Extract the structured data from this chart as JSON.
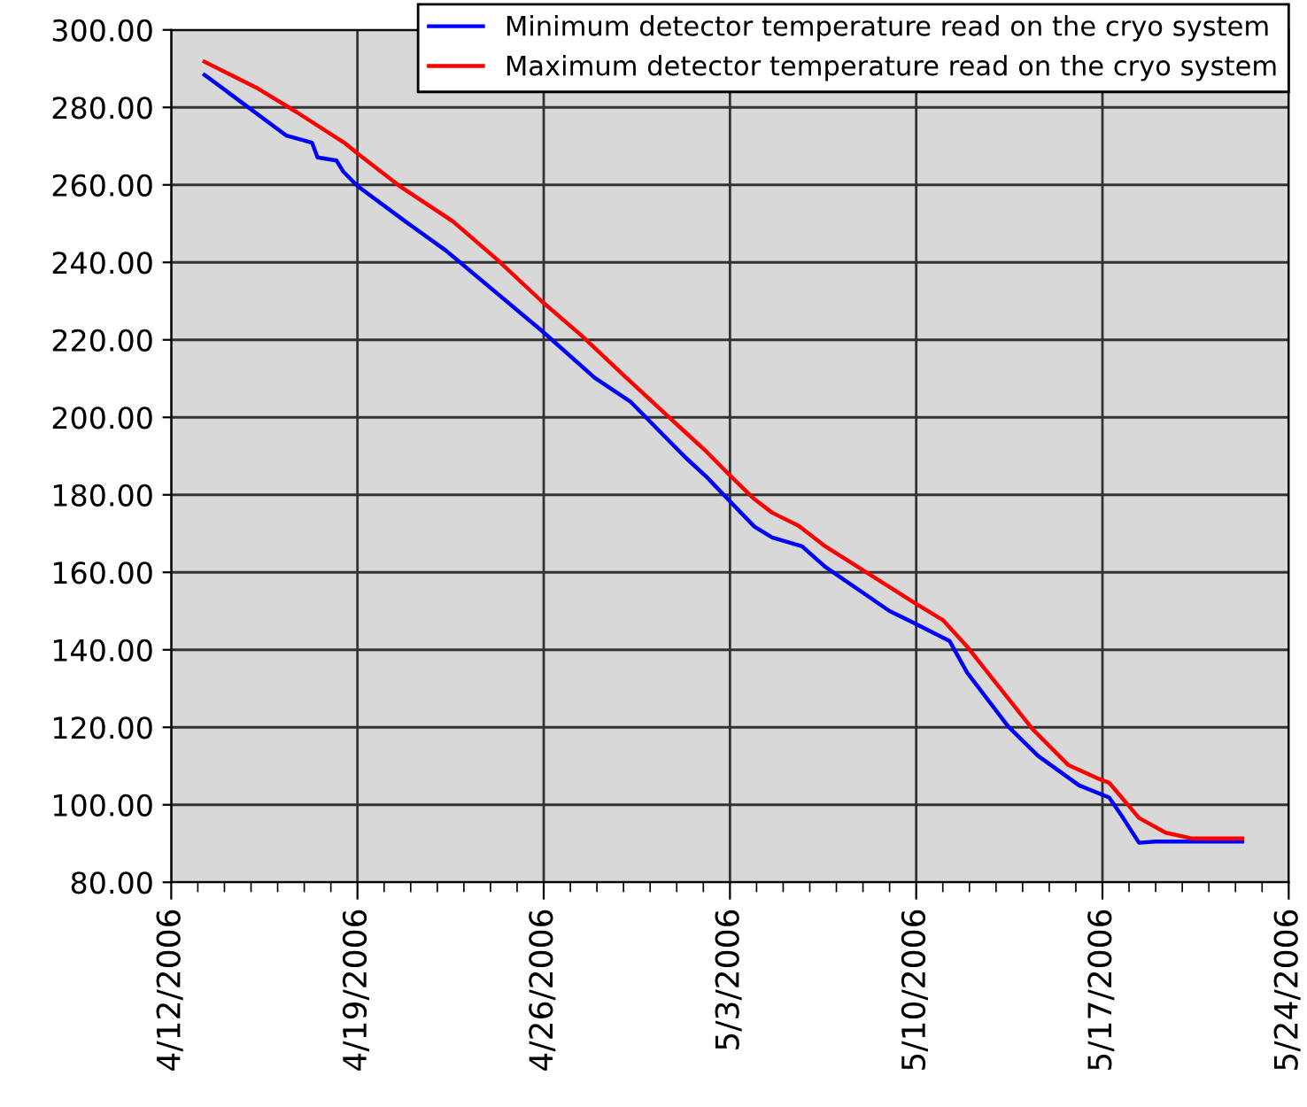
{
  "chart_data": {
    "type": "line",
    "series": [
      {
        "name": "Minimum detector temperature read on the cryo system",
        "color": "#0000ff",
        "x": [
          "2006-04-13T06:00",
          "2006-04-16T08:00",
          "2006-04-17T07:00",
          "2006-04-17T12:00",
          "2006-04-18T05:00",
          "2006-04-18T11:00",
          "2006-04-19T00:00",
          "2006-04-20T19:00",
          "2006-04-22T08:00",
          "2006-04-25T22:00",
          "2006-04-27T22:00",
          "2006-04-29T06:00",
          "2006-05-01T08:00",
          "2006-05-02T03:00",
          "2006-05-02T22:00",
          "2006-05-03T22:00",
          "2006-05-04T14:00",
          "2006-05-05T17:00",
          "2006-05-06T14:00",
          "2006-05-09T00:00",
          "2006-05-09T22:00",
          "2006-05-11T06:00",
          "2006-05-11T22:00",
          "2006-05-13T11:00",
          "2006-05-14T14:00",
          "2006-05-16T03:00",
          "2006-05-17T06:00",
          "2006-05-17T17:00",
          "2006-05-18T09:00",
          "2006-05-19T00:00",
          "2006-05-22T06:00"
        ],
        "values": [
          288.4,
          272.7,
          270.9,
          267.1,
          266.3,
          263.5,
          259.7,
          250.6,
          243.0,
          222.4,
          210.2,
          204.1,
          189.6,
          184.6,
          178.9,
          171.8,
          169.0,
          166.7,
          161.4,
          150.0,
          146.9,
          142.3,
          134.1,
          120.2,
          112.6,
          105.0,
          101.9,
          97.3,
          90.2,
          90.5,
          90.5
        ]
      },
      {
        "name": "Maximum detector temperature read on the cryo system",
        "color": "#ff0000",
        "x": [
          "2006-04-13T06:00",
          "2006-04-15T06:00",
          "2006-04-16T17:00",
          "2006-04-18T12:00",
          "2006-04-19T00:00",
          "2006-04-20T14:00",
          "2006-04-22T14:00",
          "2006-04-24T06:00",
          "2006-04-25T22:00",
          "2006-04-27T11:00",
          "2006-04-29T00:00",
          "2006-04-30T19:00",
          "2006-05-02T03:00",
          "2006-05-03T00:00",
          "2006-05-03T22:00",
          "2006-05-04T14:00",
          "2006-05-05T14:00",
          "2006-05-06T14:00",
          "2006-05-09T22:00",
          "2006-05-11T00:00",
          "2006-05-11T22:00",
          "2006-05-14T09:00",
          "2006-05-15T17:00",
          "2006-05-16T19:00",
          "2006-05-17T06:00",
          "2006-05-18T09:00",
          "2006-05-19T09:00",
          "2006-05-20T09:00",
          "2006-05-22T06:00"
        ],
        "values": [
          291.8,
          284.9,
          278.8,
          270.9,
          268.1,
          259.7,
          250.6,
          240.7,
          230.0,
          220.9,
          210.9,
          199.5,
          191.1,
          185.0,
          178.9,
          175.4,
          172.0,
          166.7,
          152.2,
          147.7,
          140.8,
          119.5,
          110.3,
          106.9,
          105.7,
          96.6,
          92.8,
          91.3,
          91.3
        ]
      }
    ],
    "xlim": [
      "2006-04-12",
      "2006-05-24"
    ],
    "xticks": [
      {
        "value": "2006-04-12",
        "label": "4/12/2006"
      },
      {
        "value": "2006-04-19",
        "label": "4/19/2006"
      },
      {
        "value": "2006-04-26",
        "label": "4/26/2006"
      },
      {
        "value": "2006-05-03",
        "label": "5/3/2006"
      },
      {
        "value": "2006-05-10",
        "label": "5/10/2006"
      },
      {
        "value": "2006-05-17",
        "label": "5/17/2006"
      },
      {
        "value": "2006-05-24",
        "label": "5/24/2006"
      }
    ],
    "ylim": [
      80,
      300
    ],
    "yticks": [
      {
        "value": 80,
        "label": "80.00"
      },
      {
        "value": 100,
        "label": "100.00"
      },
      {
        "value": 120,
        "label": "120.00"
      },
      {
        "value": 140,
        "label": "140.00"
      },
      {
        "value": 160,
        "label": "160.00"
      },
      {
        "value": 180,
        "label": "180.00"
      },
      {
        "value": 200,
        "label": "200.00"
      },
      {
        "value": 220,
        "label": "220.00"
      },
      {
        "value": 240,
        "label": "240.00"
      },
      {
        "value": 260,
        "label": "260.00"
      },
      {
        "value": 280,
        "label": "280.00"
      },
      {
        "value": 300,
        "label": "300.00"
      }
    ],
    "grid": true,
    "legend": "top right",
    "marker": "none",
    "line_style": "solid"
  }
}
